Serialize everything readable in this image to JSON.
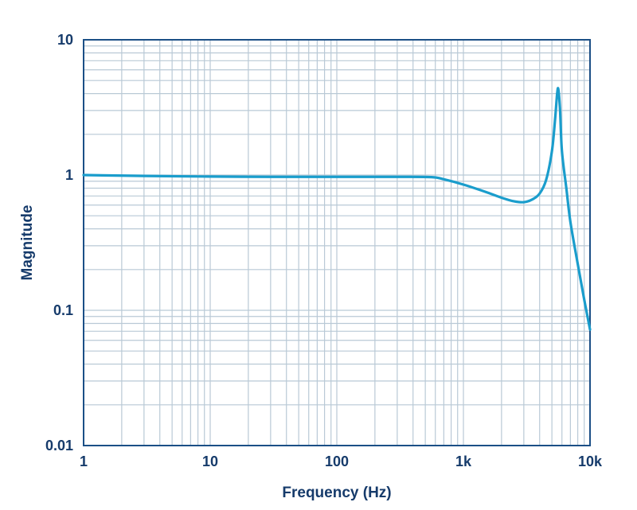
{
  "chart_data": {
    "type": "line",
    "title": "",
    "xlabel": "Frequency (Hz)",
    "ylabel": "Magnitude",
    "xscale": "log",
    "yscale": "log",
    "xlim": [
      1,
      10000
    ],
    "ylim": [
      0.01,
      10
    ],
    "grid": true,
    "legend": "none",
    "x_ticks": [
      {
        "value": 1,
        "label": "1"
      },
      {
        "value": 10,
        "label": "10"
      },
      {
        "value": 100,
        "label": "100"
      },
      {
        "value": 1000,
        "label": "1k"
      },
      {
        "value": 10000,
        "label": "10k"
      }
    ],
    "y_ticks": [
      {
        "value": 0.01,
        "label": "0.01"
      },
      {
        "value": 0.1,
        "label": "0.1"
      },
      {
        "value": 1,
        "label": "1"
      },
      {
        "value": 10,
        "label": "10"
      }
    ],
    "colors": {
      "curve": "#1a9dcc",
      "grid": "#b9c9d6",
      "border": "#1b4f86",
      "text": "#163b6b"
    },
    "series": [
      {
        "values": [
          {
            "x": 1,
            "y": 1.0
          },
          {
            "x": 3,
            "y": 0.985
          },
          {
            "x": 10,
            "y": 0.975
          },
          {
            "x": 30,
            "y": 0.97
          },
          {
            "x": 100,
            "y": 0.97
          },
          {
            "x": 300,
            "y": 0.97
          },
          {
            "x": 560,
            "y": 0.965
          },
          {
            "x": 700,
            "y": 0.93
          },
          {
            "x": 1000,
            "y": 0.85
          },
          {
            "x": 1500,
            "y": 0.75
          },
          {
            "x": 2000,
            "y": 0.68
          },
          {
            "x": 2500,
            "y": 0.64
          },
          {
            "x": 3000,
            "y": 0.63
          },
          {
            "x": 3500,
            "y": 0.66
          },
          {
            "x": 4000,
            "y": 0.73
          },
          {
            "x": 4500,
            "y": 0.92
          },
          {
            "x": 5000,
            "y": 1.5
          },
          {
            "x": 5300,
            "y": 2.6
          },
          {
            "x": 5500,
            "y": 4.0
          },
          {
            "x": 5620,
            "y": 4.3
          },
          {
            "x": 5800,
            "y": 3.0
          },
          {
            "x": 6000,
            "y": 1.5
          },
          {
            "x": 6500,
            "y": 0.8
          },
          {
            "x": 7000,
            "y": 0.45
          },
          {
            "x": 8000,
            "y": 0.22
          },
          {
            "x": 9000,
            "y": 0.12
          },
          {
            "x": 10000,
            "y": 0.072
          }
        ]
      }
    ]
  }
}
